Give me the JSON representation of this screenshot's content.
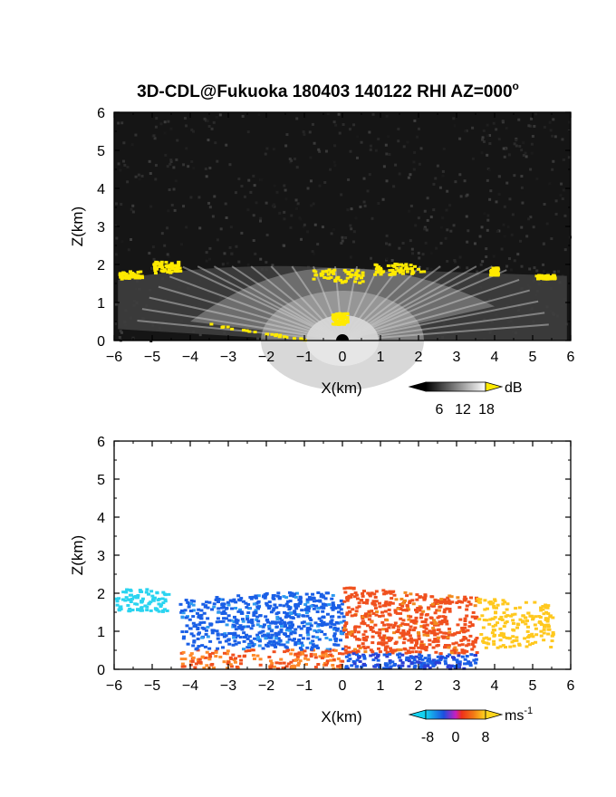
{
  "chart_data": [
    {
      "type": "heatmap",
      "title": "3D-CDL@Fukuoka 180403 140122 RHI AZ=000",
      "title_superscript": "o",
      "xlabel": "X(km)",
      "ylabel": "Z(km)",
      "xlim": [
        -6,
        6
      ],
      "ylim": [
        0,
        6
      ],
      "x_ticks": [
        "-6",
        "-5",
        "-4",
        "-3",
        "-2",
        "-1",
        "0",
        "1",
        "2",
        "3",
        "4",
        "5",
        "6"
      ],
      "y_ticks": [
        "0",
        "1",
        "2",
        "3",
        "4",
        "5",
        "6"
      ],
      "colorbar": {
        "label": "dB",
        "ticks": [
          "6",
          "12",
          "18"
        ],
        "min": 0,
        "max": 21,
        "colormap": "grayscale, yellow above max"
      },
      "background": "noise (black/dark gray)",
      "cloud_layer_height_km": [
        1.6,
        2.2
      ],
      "colors": {
        "background": "#151515",
        "highlight": "#ffea00"
      }
    },
    {
      "type": "heatmap",
      "xlabel": "X(km)",
      "ylabel": "Z(km)",
      "xlim": [
        -6,
        6
      ],
      "ylim": [
        0,
        6
      ],
      "x_ticks": [
        "-6",
        "-5",
        "-4",
        "-3",
        "-2",
        "-1",
        "0",
        "1",
        "2",
        "3",
        "4",
        "5",
        "6"
      ],
      "y_ticks": [
        "0",
        "1",
        "2",
        "3",
        "4",
        "5",
        "6"
      ],
      "colorbar": {
        "label": "ms",
        "label_superscript": "-1",
        "ticks": [
          "-8",
          "0",
          "8"
        ],
        "min": -11,
        "max": 11,
        "colormap": "cyan-blue-red-yellow"
      },
      "signal_extent_km": {
        "x": [
          -6,
          5.5
        ],
        "z": [
          0,
          2.3
        ]
      },
      "colors": {
        "negative": "#1a5fe6",
        "positive": "#f0501e",
        "strong_negative": "#2ad4f0",
        "strong_positive": "#ffc81e"
      }
    }
  ]
}
